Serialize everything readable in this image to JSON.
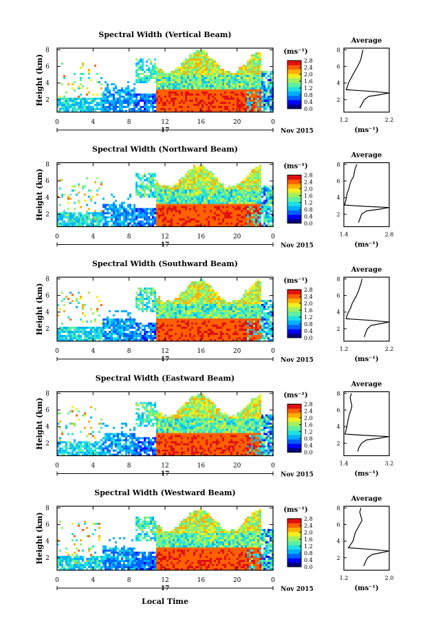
{
  "figure": {
    "x_axis_title": "Local Time",
    "day_label": "17",
    "date_label": "Nov 2015",
    "average_title": "Average",
    "colorbar_unit": "(ms⁻¹)",
    "avg_xlabel": "(ms⁻¹)",
    "height_label": "Height (km)",
    "time_ticks": [
      "0",
      "4",
      "8",
      "12",
      "16",
      "20",
      "0"
    ],
    "height_ticks": [
      "2",
      "4",
      "6",
      "8"
    ],
    "avg_height_ticks": [
      "2",
      "4",
      "6",
      "8"
    ],
    "colorbar_ticks": [
      "0.0",
      "0.4",
      "0.8",
      "1.2",
      "1.6",
      "2.0",
      "2.4",
      "2.8"
    ],
    "colormap": [
      "#000080",
      "#0000ff",
      "#0060ff",
      "#00b0ff",
      "#20e0e0",
      "#60f0a0",
      "#a0f060",
      "#f0f020",
      "#ffb000",
      "#ff6000",
      "#e01010"
    ]
  },
  "chart_data": [
    {
      "type": "heatmap",
      "title": "Spectral Width (Vertical Beam)",
      "xlabel": "Local Time",
      "ylabel": "Height (km)",
      "xlim": [
        0,
        24
      ],
      "ylim": [
        0.5,
        8.2
      ],
      "colorbar_range": [
        0.0,
        2.8
      ],
      "avg_profile": {
        "title": "Average",
        "xlim": [
          1.2,
          2.2
        ],
        "xticks": [
          "1.2",
          "2.2"
        ],
        "points": [
          [
            1.62,
            8
          ],
          [
            1.6,
            7.5
          ],
          [
            1.58,
            7
          ],
          [
            1.55,
            6.5
          ],
          [
            1.5,
            6
          ],
          [
            1.45,
            5.5
          ],
          [
            1.4,
            5
          ],
          [
            1.35,
            4.5
          ],
          [
            1.3,
            4
          ],
          [
            1.28,
            3.6
          ],
          [
            1.25,
            3.2
          ],
          [
            1.8,
            3.0
          ],
          [
            2.2,
            2.8
          ],
          [
            2.0,
            2.6
          ],
          [
            1.75,
            2.4
          ],
          [
            1.65,
            2.0
          ],
          [
            1.6,
            1.5
          ],
          [
            1.55,
            1.0
          ]
        ]
      }
    },
    {
      "type": "heatmap",
      "title": "Spectral Width (Northward Beam)",
      "xlabel": "Local Time",
      "ylabel": "Height (km)",
      "xlim": [
        0,
        24
      ],
      "ylim": [
        0.5,
        8.2
      ],
      "colorbar_range": [
        0.0,
        2.8
      ],
      "avg_profile": {
        "title": "Average",
        "xlim": [
          1.4,
          2.8
        ],
        "xticks": [
          "1.4",
          "2.8"
        ],
        "points": [
          [
            1.8,
            8
          ],
          [
            1.75,
            7.5
          ],
          [
            1.72,
            7
          ],
          [
            1.7,
            6.5
          ],
          [
            1.62,
            6
          ],
          [
            1.58,
            5.5
          ],
          [
            1.55,
            5
          ],
          [
            1.5,
            4.5
          ],
          [
            1.48,
            4
          ],
          [
            1.45,
            3.5
          ],
          [
            1.42,
            3.1
          ],
          [
            2.0,
            2.95
          ],
          [
            2.8,
            2.8
          ],
          [
            2.5,
            2.6
          ],
          [
            2.1,
            2.4
          ],
          [
            1.95,
            2.0
          ],
          [
            1.9,
            1.5
          ],
          [
            1.85,
            1.0
          ]
        ]
      }
    },
    {
      "type": "heatmap",
      "title": "Spectral Width (Southward Beam)",
      "xlabel": "Local Time",
      "ylabel": "Height (km)",
      "xlim": [
        0,
        24
      ],
      "ylim": [
        0.5,
        8.2
      ],
      "colorbar_range": [
        0.0,
        2.8
      ],
      "avg_profile": {
        "title": "Average",
        "xlim": [
          1.2,
          2.2
        ],
        "xticks": [
          "1.2",
          "2.2"
        ],
        "points": [
          [
            1.6,
            8
          ],
          [
            1.58,
            7.5
          ],
          [
            1.55,
            7
          ],
          [
            1.52,
            6.5
          ],
          [
            1.48,
            6
          ],
          [
            1.43,
            5.5
          ],
          [
            1.38,
            5
          ],
          [
            1.35,
            4.5
          ],
          [
            1.3,
            4
          ],
          [
            1.27,
            3.6
          ],
          [
            1.25,
            3.2
          ],
          [
            1.8,
            3.0
          ],
          [
            2.2,
            2.8
          ],
          [
            2.0,
            2.6
          ],
          [
            1.8,
            2.4
          ],
          [
            1.72,
            2.0
          ],
          [
            1.68,
            1.5
          ],
          [
            1.65,
            1.0
          ]
        ]
      }
    },
    {
      "type": "heatmap",
      "title": "Spectral Width (Eastward Beam)",
      "xlabel": "Local Time",
      "ylabel": "Height (km)",
      "xlim": [
        0,
        24
      ],
      "ylim": [
        0.5,
        8.2
      ],
      "colorbar_range": [
        0.0,
        2.8
      ],
      "avg_profile": {
        "title": "Average",
        "xlim": [
          1.4,
          3.2
        ],
        "xticks": [
          "1.4",
          "3.2"
        ],
        "points": [
          [
            1.7,
            8
          ],
          [
            1.65,
            7.5
          ],
          [
            1.68,
            7
          ],
          [
            1.72,
            6.5
          ],
          [
            1.68,
            6
          ],
          [
            1.62,
            5.5
          ],
          [
            1.58,
            5
          ],
          [
            1.55,
            4.5
          ],
          [
            1.52,
            4
          ],
          [
            1.48,
            3.5
          ],
          [
            1.45,
            3.1
          ],
          [
            2.2,
            2.95
          ],
          [
            3.2,
            2.8
          ],
          [
            2.8,
            2.6
          ],
          [
            2.3,
            2.4
          ],
          [
            2.1,
            2.0
          ],
          [
            2.0,
            1.5
          ],
          [
            1.95,
            1.0
          ]
        ]
      }
    },
    {
      "type": "heatmap",
      "title": "Spectral Width (Westward Beam)",
      "xlabel": "Local Time",
      "ylabel": "Height (km)",
      "xlim": [
        0,
        24
      ],
      "ylim": [
        0.5,
        8.2
      ],
      "colorbar_range": [
        0.0,
        2.8
      ],
      "avg_profile": {
        "title": "Average",
        "xlim": [
          1.2,
          2.0
        ],
        "xticks": [
          "1.2",
          "2.0"
        ],
        "points": [
          [
            1.5,
            8
          ],
          [
            1.48,
            7.5
          ],
          [
            1.5,
            7
          ],
          [
            1.52,
            6.5
          ],
          [
            1.48,
            6
          ],
          [
            1.44,
            5.5
          ],
          [
            1.4,
            5
          ],
          [
            1.38,
            4.5
          ],
          [
            1.36,
            4
          ],
          [
            1.32,
            3.6
          ],
          [
            1.28,
            3.2
          ],
          [
            1.7,
            3.0
          ],
          [
            2.0,
            2.8
          ],
          [
            1.85,
            2.6
          ],
          [
            1.7,
            2.4
          ],
          [
            1.62,
            2.0
          ],
          [
            1.58,
            1.5
          ],
          [
            1.55,
            1.0
          ]
        ]
      }
    }
  ]
}
